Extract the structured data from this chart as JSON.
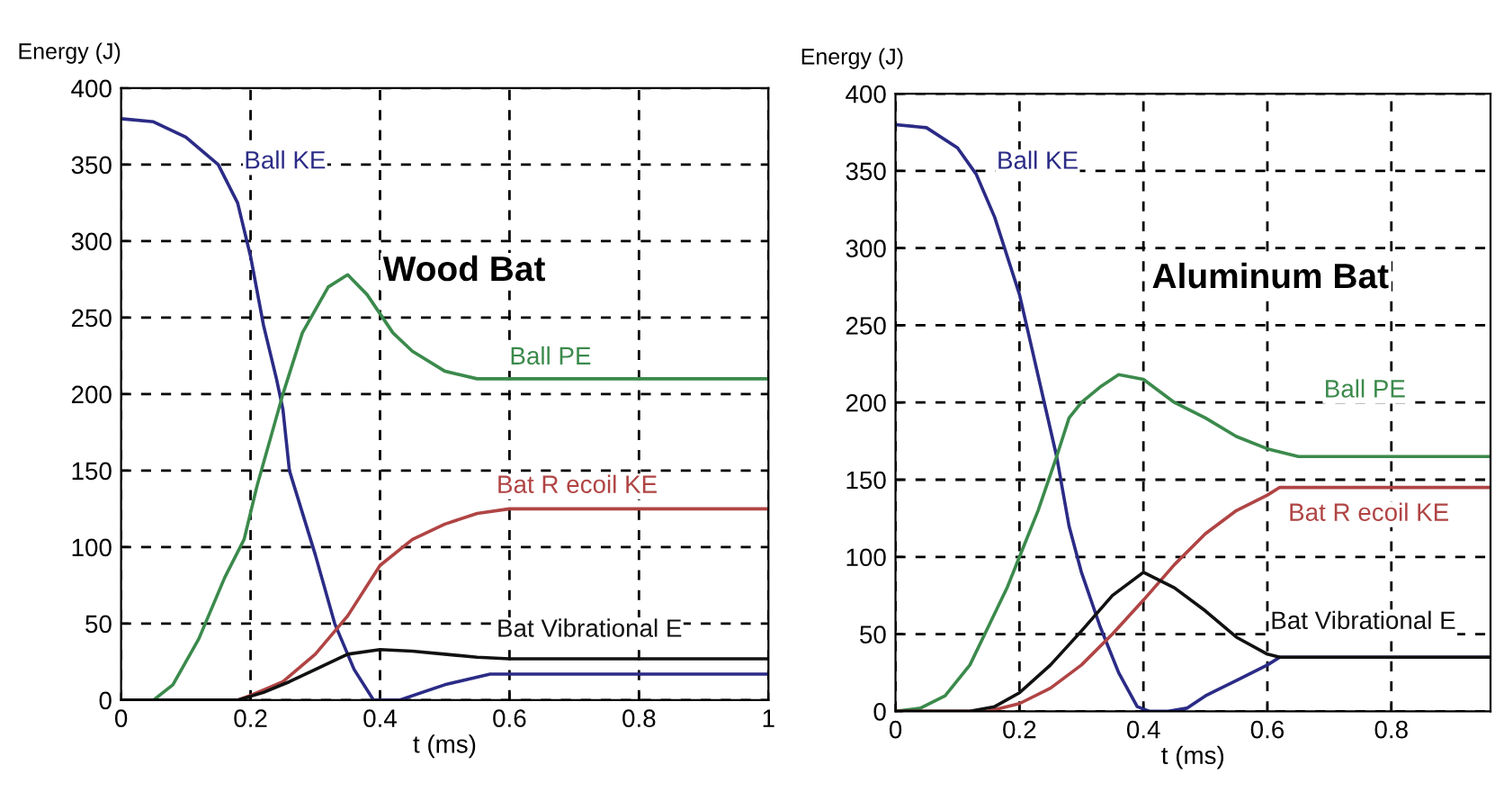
{
  "chart_data": [
    {
      "type": "line",
      "title": "Wood Bat",
      "xlabel": "t (ms)",
      "ylabel": "Energy (J)",
      "xlim": [
        0,
        1
      ],
      "xticks": [
        0,
        0.2,
        0.4,
        0.6,
        0.8,
        1
      ],
      "ylim": [
        0,
        400
      ],
      "yticks": [
        0,
        50,
        100,
        150,
        200,
        250,
        300,
        350,
        400
      ],
      "grid": true,
      "legend": false,
      "series": [
        {
          "name": "Ball KE",
          "color": "#2b2b86",
          "x": [
            0,
            0.05,
            0.1,
            0.15,
            0.18,
            0.2,
            0.22,
            0.24,
            0.25,
            0.26,
            0.3,
            0.33,
            0.36,
            0.39,
            0.43,
            0.5,
            0.57,
            1
          ],
          "values": [
            380,
            378,
            368,
            350,
            325,
            290,
            245,
            210,
            190,
            150,
            95,
            50,
            20,
            0,
            0,
            10,
            17,
            17
          ]
        },
        {
          "name": "Ball PE",
          "color": "#3b8a4c",
          "x": [
            0,
            0.05,
            0.08,
            0.12,
            0.16,
            0.19,
            0.21,
            0.23,
            0.25,
            0.28,
            0.32,
            0.35,
            0.38,
            0.42,
            0.45,
            0.5,
            0.55,
            0.6,
            1
          ],
          "values": [
            0,
            0,
            10,
            40,
            80,
            105,
            140,
            170,
            200,
            240,
            270,
            278,
            265,
            240,
            228,
            215,
            210,
            210,
            210
          ]
        },
        {
          "name": "Bat R ecoil KE",
          "color": "#b04444",
          "x": [
            0,
            0.18,
            0.2,
            0.25,
            0.3,
            0.35,
            0.4,
            0.45,
            0.5,
            0.55,
            0.6,
            1
          ],
          "values": [
            0,
            0,
            3,
            12,
            30,
            55,
            88,
            105,
            115,
            122,
            125,
            125
          ]
        },
        {
          "name": "Bat Vibrational E",
          "color": "#111111",
          "x": [
            0,
            0.18,
            0.22,
            0.26,
            0.3,
            0.35,
            0.4,
            0.45,
            0.5,
            0.55,
            0.6,
            1
          ],
          "values": [
            0,
            0,
            5,
            12,
            20,
            30,
            33,
            32,
            30,
            28,
            27,
            27
          ]
        }
      ]
    },
    {
      "type": "line",
      "title": "Aluminum Bat",
      "xlabel": "t (ms)",
      "ylabel": "Energy (J)",
      "xlim": [
        0,
        0.96
      ],
      "xticks": [
        0,
        0.2,
        0.4,
        0.6,
        0.8
      ],
      "ylim": [
        0,
        400
      ],
      "yticks": [
        0,
        50,
        100,
        150,
        200,
        250,
        300,
        350,
        400
      ],
      "grid": true,
      "legend": false,
      "series": [
        {
          "name": "Ball KE",
          "color": "#2b2b86",
          "x": [
            0,
            0.05,
            0.1,
            0.13,
            0.16,
            0.2,
            0.22,
            0.24,
            0.26,
            0.28,
            0.3,
            0.33,
            0.36,
            0.39,
            0.41,
            0.44,
            0.47,
            0.5,
            0.55,
            0.6,
            0.62,
            0.96
          ],
          "values": [
            380,
            378,
            365,
            348,
            320,
            270,
            235,
            200,
            165,
            120,
            90,
            55,
            25,
            3,
            0,
            0,
            2,
            10,
            20,
            30,
            35,
            35
          ]
        },
        {
          "name": "Ball PE",
          "color": "#3b8a4c",
          "x": [
            0,
            0.04,
            0.08,
            0.12,
            0.15,
            0.18,
            0.2,
            0.23,
            0.26,
            0.28,
            0.3,
            0.33,
            0.36,
            0.4,
            0.45,
            0.5,
            0.55,
            0.6,
            0.65,
            0.96
          ],
          "values": [
            0,
            2,
            10,
            30,
            55,
            80,
            100,
            130,
            165,
            190,
            200,
            210,
            218,
            215,
            200,
            190,
            178,
            170,
            165,
            165
          ]
        },
        {
          "name": "Bat R ecoil KE",
          "color": "#b04444",
          "x": [
            0,
            0.15,
            0.2,
            0.25,
            0.3,
            0.35,
            0.4,
            0.45,
            0.5,
            0.55,
            0.6,
            0.62,
            0.96
          ],
          "values": [
            0,
            0,
            5,
            15,
            30,
            50,
            72,
            95,
            115,
            130,
            140,
            145,
            145
          ]
        },
        {
          "name": "Bat Vibrational E",
          "color": "#111111",
          "x": [
            0,
            0.12,
            0.16,
            0.2,
            0.25,
            0.3,
            0.35,
            0.4,
            0.45,
            0.5,
            0.55,
            0.6,
            0.62,
            0.96
          ],
          "values": [
            0,
            0,
            3,
            12,
            30,
            52,
            75,
            90,
            80,
            65,
            48,
            37,
            35,
            35
          ]
        }
      ]
    }
  ]
}
